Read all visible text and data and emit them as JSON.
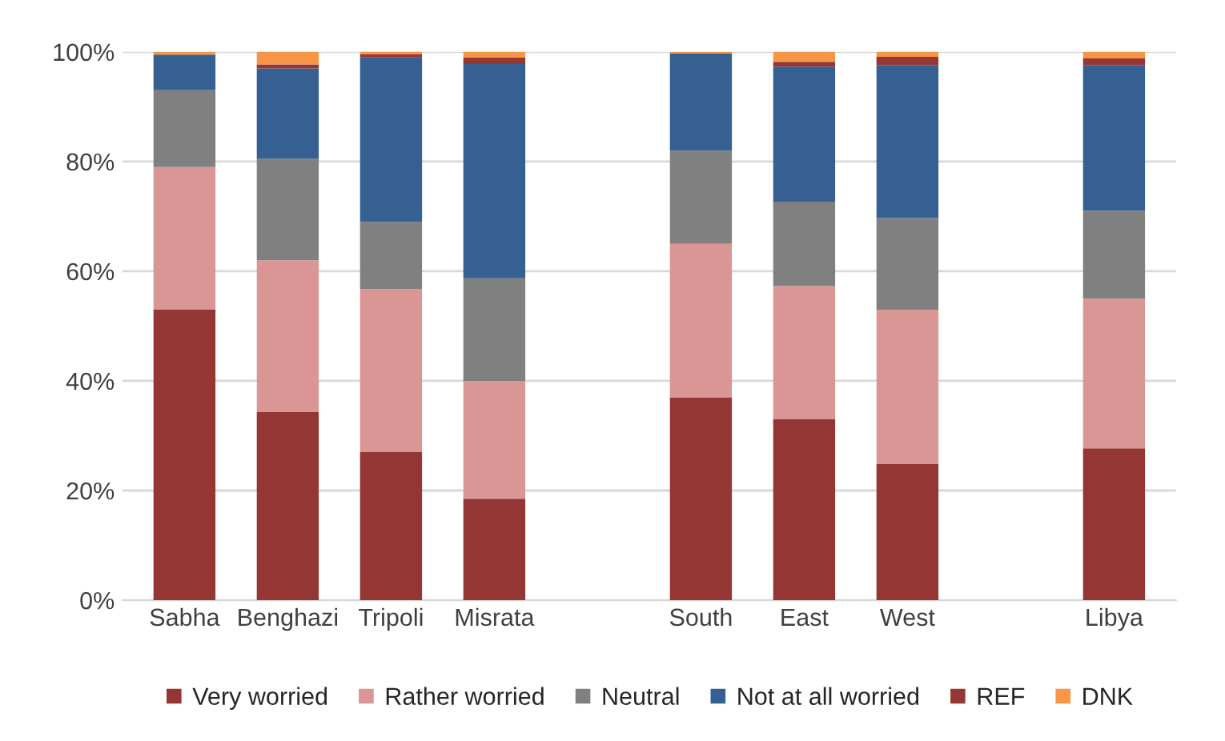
{
  "chart_data": {
    "type": "bar",
    "stacked": true,
    "categories": [
      "Sabha",
      "Benghazi",
      "Tripoli",
      "Misrata",
      null,
      "South",
      "East",
      "West",
      null,
      "Libya"
    ],
    "series": [
      {
        "name": "Very worried",
        "color": "#943634",
        "values": [
          53,
          34.3,
          27,
          18.5,
          null,
          37,
          33,
          24.8,
          null,
          27.7
        ]
      },
      {
        "name": "Rather worried",
        "color": "#d99694",
        "values": [
          26,
          27.7,
          29.7,
          21.5,
          null,
          28,
          24.3,
          28.2,
          null,
          27.3
        ]
      },
      {
        "name": "Neutral",
        "color": "#808080",
        "values": [
          14,
          18.5,
          12.3,
          18.7,
          null,
          17,
          15.4,
          16.7,
          null,
          16
        ]
      },
      {
        "name": "Not at all worried",
        "color": "#366092",
        "values": [
          6.5,
          16.5,
          30,
          39.1,
          null,
          17.7,
          24.6,
          27.9,
          null,
          26.6
        ]
      },
      {
        "name": "REF",
        "color": "#953735",
        "values": [
          null,
          0.7,
          0.6,
          1.2,
          null,
          null,
          0.9,
          1.5,
          null,
          1.2
        ]
      },
      {
        "name": "DNK",
        "color": "#f79646",
        "values": [
          0.5,
          2.3,
          0.4,
          1,
          null,
          0.3,
          1.8,
          0.9,
          null,
          1.2
        ]
      }
    ],
    "ylim": [
      0,
      100
    ],
    "yticks": [
      {
        "value": 0,
        "label": "0%"
      },
      {
        "value": 20,
        "label": "20%"
      },
      {
        "value": 40,
        "label": "40%"
      },
      {
        "value": 60,
        "label": "60%"
      },
      {
        "value": 80,
        "label": "80%"
      },
      {
        "value": 100,
        "label": "100%"
      }
    ],
    "grid": "y",
    "legend": "bottom"
  }
}
